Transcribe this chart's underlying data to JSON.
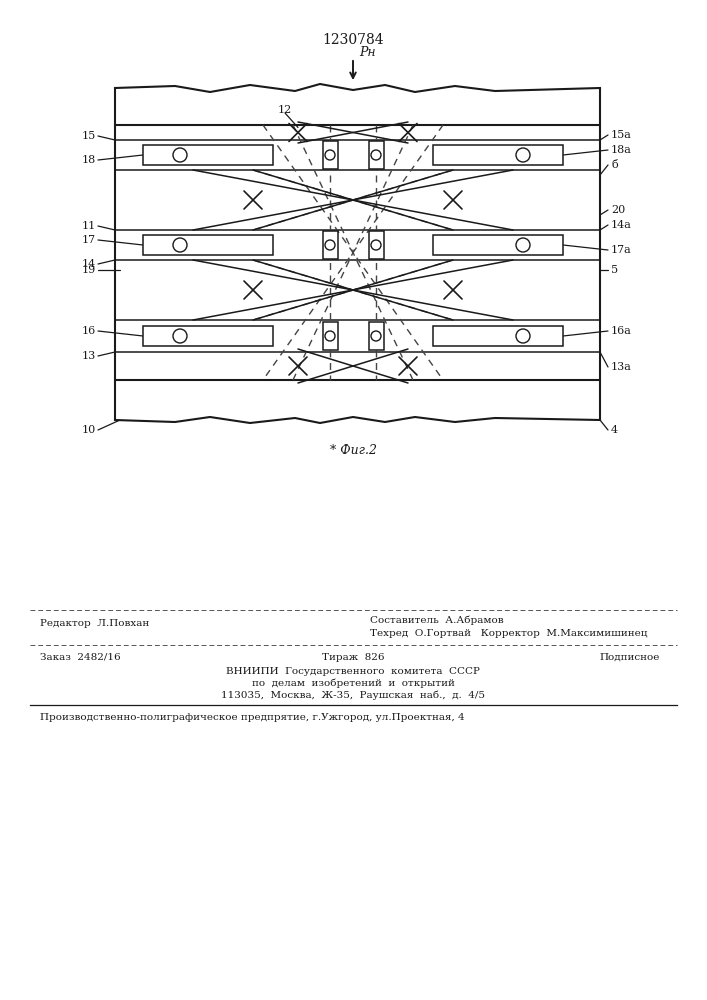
{
  "patent_number": "1230784",
  "figure_label": "* Фиг.2",
  "load_label": "Pн",
  "bg_color": "#ffffff",
  "line_color": "#1a1a1a",
  "dashed_color": "#444444",
  "footer_line1_left": "Редактор  Л.Повхан",
  "footer_line1_right": "Составитель  А.Абрамов",
  "footer_line2_right": "Техред  О.Гортвай   Корректор  М.Максимишинец",
  "footer_order": "Заказ  2482/16",
  "footer_tirazh": "Тираж  826",
  "footer_podpisnoe": "Подписное",
  "footer_vniip1": "ВНИИПИ  Государственного  комитета  СССР",
  "footer_vniip2": "по  делам  изобретений  и  открытий",
  "footer_vniip3": "113035,  Москва,  Ж-35,  Раушская  наб.,  д.  4/5",
  "footer_proizv": "Производственно-полиграфическое предпрятие, г.Ужгород, ул.Проектная, 4"
}
